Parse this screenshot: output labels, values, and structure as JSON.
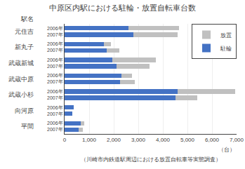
{
  "chart_data": {
    "type": "bar",
    "orientation": "horizontal",
    "stacked": true,
    "title": "中原区内駅における駐輪・放置自転車台数",
    "ylabel": "駅名",
    "xlabel": "（台）",
    "footnote": "（川崎市内鉄道駅周辺における放置自転車等実態調査）",
    "categories": [
      "2006年",
      "2007年",
      "2006年",
      "2007年",
      "2006年",
      "2007年",
      "2006年",
      "2007年",
      "2006年",
      "2007年",
      "2006年",
      "2007年",
      "2006年",
      "2007年"
    ],
    "category_groups": [
      "元住吉",
      "元住吉",
      "新丸子",
      "新丸子",
      "武蔵新城",
      "武蔵新城",
      "武蔵中原",
      "武蔵中原",
      "武蔵小杉",
      "武蔵小杉",
      "向河原",
      "向河原",
      "平間",
      "平間"
    ],
    "series": [
      {
        "name": "駐輪",
        "color": "#4472C4",
        "values": [
          2600,
          2800,
          1600,
          1700,
          1950,
          2100,
          2300,
          2250,
          4600,
          4500,
          380,
          310,
          650,
          580
        ]
      },
      {
        "name": "放置",
        "color": "#C0C0C0",
        "values": [
          2050,
          1800,
          280,
          520,
          1750,
          1350,
          430,
          600,
          2350,
          900,
          0,
          0,
          150,
          150
        ]
      }
    ],
    "xlim": [
      0,
      7000
    ],
    "xticks": [
      0,
      {
        "value": 1000,
        "label": "1,000"
      },
      {
        "value": 2000,
        "label": "2,000"
      },
      {
        "value": 3000,
        "label": "3,000"
      },
      {
        "value": 4000,
        "label": "4,000"
      },
      {
        "value": 5000,
        "label": "5,000"
      },
      {
        "value": 6000,
        "label": "6,000"
      },
      {
        "value": 7000,
        "label": "7,000"
      }
    ],
    "grid": true,
    "legend": "upper right"
  }
}
